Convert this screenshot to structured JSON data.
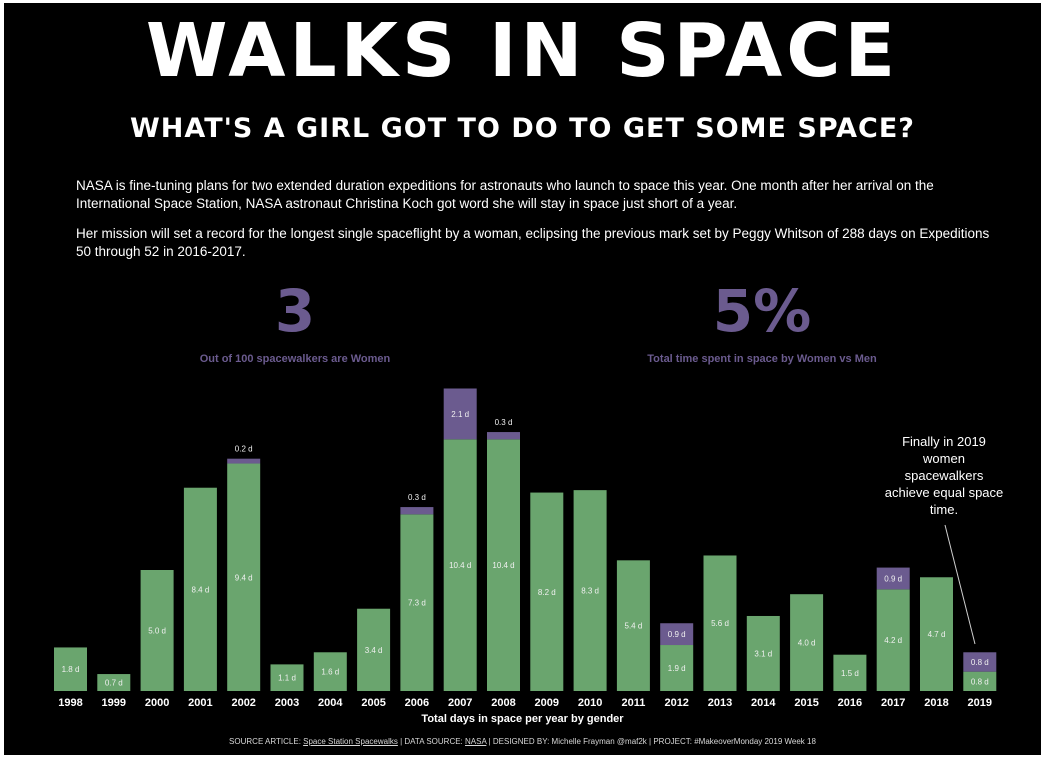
{
  "title": "WALKS IN SPACE",
  "subtitle": "WHAT'S A GIRL GOT TO DO TO GET SOME SPACE?",
  "paragraphs": [
    "NASA is fine-tuning plans for two extended duration expeditions for astronauts who launch to space this year. One month after her arrival on the International Space Station, NASA astronaut Christina Koch got word she will stay in space just short of a year.",
    "Her mission will set a record for the longest single spaceflight by a woman, eclipsing the previous mark set by Peggy Whitson of 288 days on Expeditions 50 through 52 in 2016-2017."
  ],
  "kpis": [
    {
      "value": "3",
      "label": "Out of 100 spacewalkers are Women"
    },
    {
      "value": "5%",
      "label": "Total time spent in space by Women vs Men"
    }
  ],
  "annotation": "Finally in 2019 women spacewalkers achieve equal space time.",
  "footer": {
    "source_prefix": "SOURCE ARTICLE: ",
    "source_link": "Space Station Spacewalks",
    "data_prefix": " | DATA SOURCE: ",
    "data_link": "NASA",
    "rest": " | DESIGNED BY: Michelle Frayman @maf2k | PROJECT: #MakeoverMonday 2019 Week 18"
  },
  "colors": {
    "men": "#6aa56e",
    "women": "#6b5b8f",
    "background": "#000000",
    "kpi": "#6b5b8f"
  },
  "chart_data": {
    "type": "bar",
    "stacked": true,
    "xlabel": "Total days in space per year by gender",
    "categories": [
      "1998",
      "1999",
      "2000",
      "2001",
      "2002",
      "2003",
      "2004",
      "2005",
      "2006",
      "2007",
      "2008",
      "2009",
      "2010",
      "2011",
      "2012",
      "2013",
      "2014",
      "2015",
      "2016",
      "2017",
      "2018",
      "2019"
    ],
    "unit_suffix": " d",
    "series": [
      {
        "key": "men",
        "values": [
          1.8,
          0.7,
          5.0,
          8.4,
          9.4,
          1.1,
          1.6,
          3.4,
          7.3,
          10.4,
          10.4,
          8.2,
          8.3,
          5.4,
          1.9,
          5.6,
          3.1,
          4.0,
          1.5,
          4.2,
          4.7,
          0.8
        ]
      },
      {
        "key": "women",
        "values": [
          0,
          0,
          0,
          0,
          0.2,
          0,
          0,
          0,
          0.3,
          2.1,
          0.3,
          0,
          0,
          0,
          0.9,
          0,
          0,
          0,
          0,
          0.9,
          0,
          0.8
        ]
      }
    ],
    "ylim": [
      0,
      12.5
    ],
    "grid": false,
    "legend": "none"
  }
}
